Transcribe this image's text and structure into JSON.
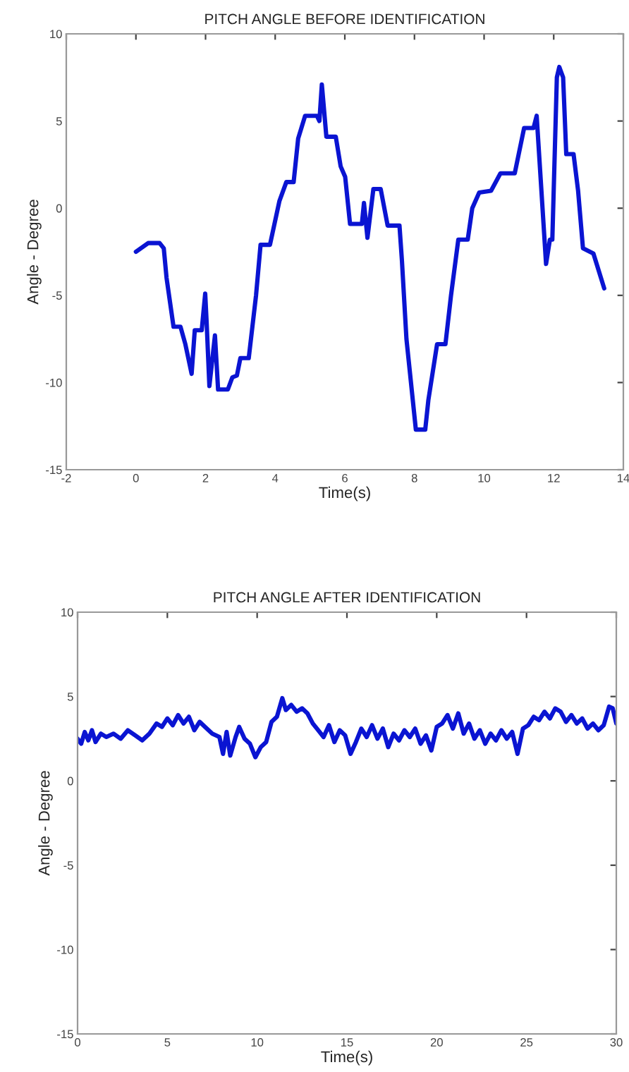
{
  "chart_data": [
    {
      "type": "line",
      "title": "PITCH ANGLE BEFORE IDENTIFICATION",
      "xlabel": "Time(s)",
      "ylabel": "Angle - Degree",
      "xlim": [
        -2,
        14
      ],
      "xticks": [
        -2,
        0,
        2,
        4,
        6,
        8,
        10,
        12,
        14
      ],
      "ylim": [
        -15,
        10
      ],
      "yticks": [
        -15,
        -10,
        -5,
        0,
        5,
        10
      ],
      "grid": false,
      "legend": false,
      "series": [
        {
          "color": "#0a14d2",
          "x": [
            0,
            0.35,
            0.68,
            0.8,
            0.88,
            1.08,
            1.28,
            1.42,
            1.6,
            1.69,
            1.89,
            1.99,
            2.03,
            2.11,
            2.27,
            2.36,
            2.64,
            2.77,
            2.9,
            3.0,
            3.24,
            3.45,
            3.58,
            3.85,
            4.12,
            4.32,
            4.53,
            4.66,
            4.86,
            5.2,
            5.27,
            5.34,
            5.47,
            5.74,
            5.88,
            6.01,
            6.15,
            6.49,
            6.55,
            6.65,
            6.82,
            7.03,
            7.23,
            7.57,
            7.64,
            7.77,
            8.04,
            8.31,
            8.4,
            8.65,
            8.89,
            9.05,
            9.26,
            9.53,
            9.66,
            9.86,
            10.2,
            10.47,
            10.88,
            11.15,
            11.42,
            11.51,
            11.78,
            11.89,
            11.96,
            12.09,
            12.16,
            12.27,
            12.36,
            12.57,
            12.7,
            12.84,
            13.14,
            13.45
          ],
          "values": [
            -2.5,
            -2,
            -2,
            -2.3,
            -4,
            -6.8,
            -6.8,
            -7.8,
            -9.5,
            -7,
            -7,
            -4.9,
            -6.5,
            -10.2,
            -7.3,
            -10.4,
            -10.4,
            -9.7,
            -9.6,
            -8.6,
            -8.6,
            -5,
            -2.1,
            -2.1,
            0.4,
            1.5,
            1.5,
            4,
            5.3,
            5.3,
            5,
            7.1,
            4.1,
            4.1,
            2.4,
            1.8,
            -0.9,
            -0.9,
            0.3,
            -1.7,
            1.1,
            1.1,
            -1,
            -1,
            -3,
            -7.5,
            -12.7,
            -12.7,
            -11,
            -7.8,
            -7.8,
            -5,
            -1.8,
            -1.8,
            0,
            0.9,
            1,
            2,
            2,
            4.6,
            4.6,
            5.3,
            -3.2,
            -1.8,
            -1.8,
            7.5,
            8.1,
            7.5,
            3.1,
            3.1,
            1,
            -2.3,
            -2.6,
            -4.6
          ]
        }
      ]
    },
    {
      "type": "line",
      "title": "PITCH ANGLE AFTER IDENTIFICATION",
      "xlabel": "Time(s)",
      "ylabel": "Angle - Degree",
      "xlim": [
        0,
        30
      ],
      "xticks": [
        0,
        5,
        10,
        15,
        20,
        25,
        30
      ],
      "ylim": [
        -15,
        10
      ],
      "yticks": [
        -15,
        -10,
        -5,
        0,
        5,
        10
      ],
      "grid": false,
      "legend": false,
      "series": [
        {
          "color": "#0a14d2",
          "x": [
            0,
            0.2,
            0.4,
            0.6,
            0.8,
            1.0,
            1.3,
            1.6,
            2.0,
            2.4,
            2.8,
            3.2,
            3.6,
            4.0,
            4.4,
            4.7,
            5.0,
            5.3,
            5.6,
            5.9,
            6.2,
            6.5,
            6.8,
            7.1,
            7.5,
            7.9,
            8.1,
            8.3,
            8.5,
            8.8,
            9.0,
            9.3,
            9.6,
            9.9,
            10.2,
            10.5,
            10.8,
            11.1,
            11.4,
            11.6,
            11.9,
            12.2,
            12.5,
            12.8,
            13.1,
            13.4,
            13.7,
            14.0,
            14.3,
            14.6,
            14.9,
            15.2,
            15.5,
            15.8,
            16.1,
            16.4,
            16.7,
            17.0,
            17.3,
            17.6,
            17.9,
            18.2,
            18.5,
            18.8,
            19.1,
            19.4,
            19.7,
            20.0,
            20.3,
            20.6,
            20.9,
            21.2,
            21.5,
            21.8,
            22.1,
            22.4,
            22.7,
            23.0,
            23.3,
            23.6,
            23.9,
            24.2,
            24.5,
            24.8,
            25.1,
            25.4,
            25.7,
            26.0,
            26.3,
            26.6,
            26.9,
            27.2,
            27.5,
            27.8,
            28.1,
            28.4,
            28.7,
            29.0,
            29.3,
            29.6,
            29.8,
            30.0
          ],
          "values": [
            2.5,
            2.2,
            2.9,
            2.4,
            3.0,
            2.3,
            2.8,
            2.6,
            2.8,
            2.5,
            3.0,
            2.7,
            2.4,
            2.8,
            3.4,
            3.2,
            3.7,
            3.3,
            3.9,
            3.4,
            3.8,
            3.0,
            3.5,
            3.2,
            2.8,
            2.6,
            1.6,
            2.9,
            1.5,
            2.6,
            3.2,
            2.5,
            2.2,
            1.4,
            2.0,
            2.3,
            3.5,
            3.8,
            4.9,
            4.2,
            4.5,
            4.1,
            4.3,
            4.0,
            3.4,
            3.0,
            2.6,
            3.3,
            2.3,
            3.0,
            2.7,
            1.6,
            2.3,
            3.1,
            2.6,
            3.3,
            2.5,
            3.1,
            2.0,
            2.8,
            2.4,
            3.0,
            2.6,
            3.1,
            2.2,
            2.7,
            1.8,
            3.2,
            3.4,
            3.9,
            3.1,
            4.0,
            2.8,
            3.4,
            2.5,
            3.0,
            2.2,
            2.8,
            2.4,
            3.0,
            2.5,
            2.9,
            1.6,
            3.1,
            3.3,
            3.8,
            3.6,
            4.1,
            3.7,
            4.3,
            4.1,
            3.5,
            3.9,
            3.4,
            3.7,
            3.1,
            3.4,
            3.0,
            3.3,
            4.4,
            4.3,
            3.4
          ]
        }
      ]
    }
  ]
}
